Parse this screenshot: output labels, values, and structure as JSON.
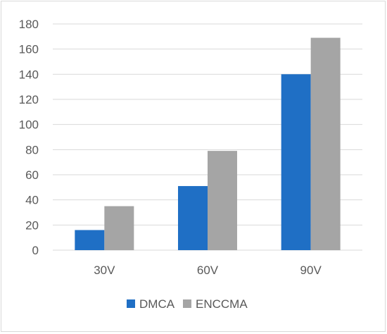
{
  "chart_data": {
    "type": "bar",
    "title": "",
    "xlabel": "",
    "ylabel": "",
    "categories": [
      "30V",
      "60V",
      "90V"
    ],
    "series": [
      {
        "name": "DMCA",
        "color": "#1f6fc5",
        "values": [
          16,
          51,
          140
        ]
      },
      {
        "name": "ENCCMA",
        "color": "#a5a5a5",
        "values": [
          35,
          79,
          169
        ]
      }
    ],
    "ylim": [
      0,
      180
    ],
    "yticks": [
      0,
      20,
      40,
      60,
      80,
      100,
      120,
      140,
      160,
      180
    ],
    "grid": true,
    "legend_position": "bottom"
  }
}
